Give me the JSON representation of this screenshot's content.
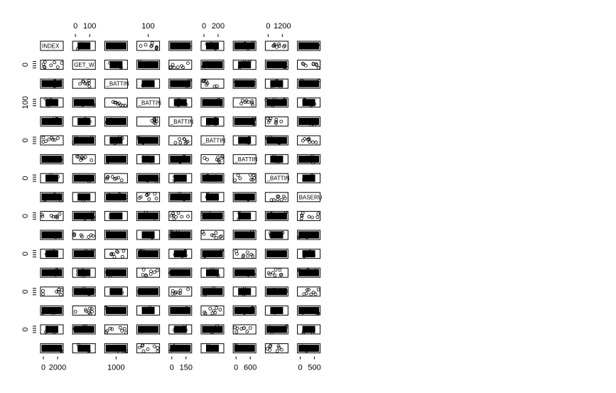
{
  "chart_data": {
    "type": "scatter",
    "matrix": true,
    "n_vars": 9,
    "n_rows": 17,
    "title": "",
    "diagonal_labels": [
      "INDEX",
      "GET_W",
      "_BATTIN",
      "_BATTIN",
      "_BATTIN",
      "_BATTIN",
      "_BATTIN",
      "_BATTIN",
      "BASERU"
    ],
    "top_axis": [
      {
        "col": 1,
        "labels": [
          "0",
          "100"
        ]
      },
      {
        "col": 3,
        "labels": [
          "100"
        ]
      },
      {
        "col": 5,
        "labels": [
          "0",
          "200"
        ]
      },
      {
        "col": 7,
        "labels": [
          "0",
          "1200"
        ]
      }
    ],
    "bottom_axis": [
      {
        "col": 0,
        "labels": [
          "0",
          "2000"
        ]
      },
      {
        "col": 2,
        "labels": [
          "1000"
        ]
      },
      {
        "col": 4,
        "labels": [
          "0",
          "150"
        ]
      },
      {
        "col": 6,
        "labels": [
          "0",
          "600"
        ]
      },
      {
        "col": 8,
        "labels": [
          "0",
          "500"
        ]
      }
    ],
    "left_axis": [
      {
        "row": 1,
        "label": "0"
      },
      {
        "row": 3,
        "label": "100"
      },
      {
        "row": 5,
        "label": "0"
      },
      {
        "row": 7,
        "label": "0"
      },
      {
        "row": 9,
        "label": "0"
      },
      {
        "row": 11,
        "label": "0"
      },
      {
        "row": 13,
        "label": "0"
      },
      {
        "row": 15,
        "label": "0"
      }
    ],
    "grid": false,
    "legend": "none"
  }
}
